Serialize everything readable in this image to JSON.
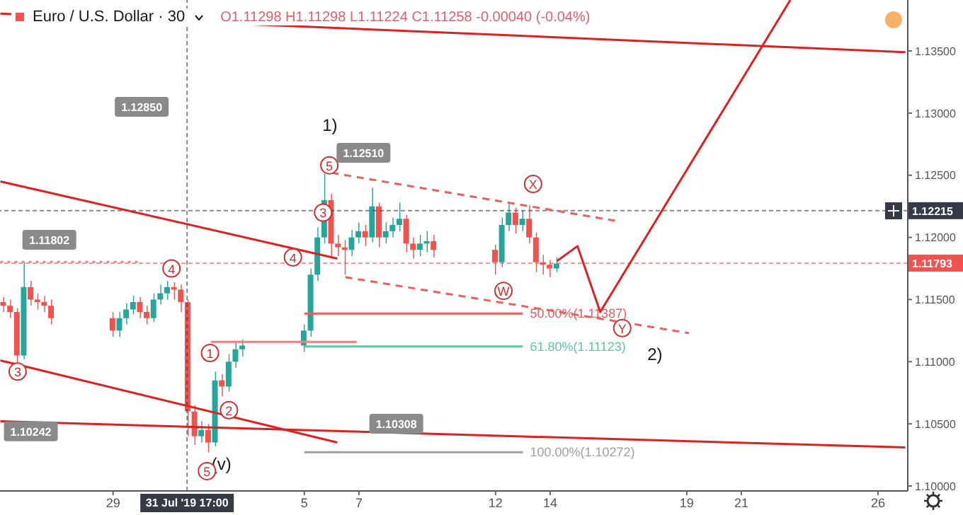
{
  "chart_data": {
    "type": "candlestick",
    "title": "Euro / U.S. Dollar · 30",
    "subtitle": "O1.11298 H1.11298 L1.11224 C1.11258 -0.00040 (-0.04%)",
    "x": [
      "2019-07-25T00:00",
      "2019-07-25T06:00",
      "2019-07-25T12:00",
      "2019-07-25T18:00",
      "2019-07-26T00:00",
      "2019-07-26T06:00",
      "2019-07-26T12:00",
      "2019-07-26T18:00",
      "2019-07-29T00:00",
      "2019-07-29T06:00",
      "2019-07-29T12:00",
      "2019-07-29T18:00",
      "2019-07-30T00:00",
      "2019-07-30T06:00",
      "2019-07-30T12:00",
      "2019-07-30T18:00",
      "2019-07-31T00:00",
      "2019-07-31T06:00",
      "2019-07-31T12:00",
      "2019-07-31T18:00",
      "2019-08-01T00:00",
      "2019-08-01T06:00",
      "2019-08-01T12:00",
      "2019-08-01T18:00",
      "2019-08-02T00:00",
      "2019-08-02T06:00",
      "2019-08-02T12:00",
      "2019-08-02T18:00",
      "2019-08-05T00:00",
      "2019-08-05T06:00",
      "2019-08-05T12:00",
      "2019-08-05T18:00",
      "2019-08-06T00:00",
      "2019-08-06T06:00",
      "2019-08-06T12:00",
      "2019-08-06T18:00",
      "2019-08-07T00:00",
      "2019-08-07T06:00",
      "2019-08-07T12:00",
      "2019-08-07T18:00",
      "2019-08-08T00:00",
      "2019-08-08T06:00",
      "2019-08-08T12:00",
      "2019-08-08T18:00",
      "2019-08-09T00:00",
      "2019-08-09T06:00",
      "2019-08-09T12:00",
      "2019-08-09T18:00",
      "2019-08-12T00:00",
      "2019-08-12T06:00",
      "2019-08-12T12:00",
      "2019-08-12T18:00",
      "2019-08-13T00:00",
      "2019-08-13T06:00",
      "2019-08-13T12:00",
      "2019-08-13T18:00",
      "2019-08-14T00:00",
      "2019-08-14T06:00"
    ],
    "ohlc": [
      [
        1.1148,
        1.1152,
        1.114,
        1.1145
      ],
      [
        1.1145,
        1.115,
        1.1135,
        1.114
      ],
      [
        1.114,
        1.1143,
        1.1098,
        1.1105
      ],
      [
        1.1105,
        1.118,
        1.1102,
        1.116
      ],
      [
        1.116,
        1.1165,
        1.1145,
        1.115
      ],
      [
        1.115,
        1.1155,
        1.1142,
        1.1148
      ],
      [
        1.1148,
        1.1153,
        1.114,
        1.1145
      ],
      [
        1.1145,
        1.115,
        1.113,
        1.1135
      ],
      [
        1.1135,
        1.114,
        1.112,
        1.1125
      ],
      [
        1.1125,
        1.114,
        1.112,
        1.1135
      ],
      [
        1.1135,
        1.1147,
        1.113,
        1.1142
      ],
      [
        1.1142,
        1.1153,
        1.1138,
        1.1148
      ],
      [
        1.1148,
        1.1152,
        1.1135,
        1.114
      ],
      [
        1.114,
        1.1145,
        1.113,
        1.1135
      ],
      [
        1.1135,
        1.1155,
        1.1132,
        1.115
      ],
      [
        1.115,
        1.1162,
        1.1146,
        1.1155
      ],
      [
        1.1155,
        1.1165,
        1.115,
        1.116
      ],
      [
        1.116,
        1.1164,
        1.115,
        1.1158
      ],
      [
        1.1158,
        1.1162,
        1.114,
        1.1148
      ],
      [
        1.1148,
        1.115,
        1.104,
        1.106
      ],
      [
        1.106,
        1.1065,
        1.1033,
        1.104
      ],
      [
        1.104,
        1.1052,
        1.1035,
        1.1045
      ],
      [
        1.1045,
        1.105,
        1.1027,
        1.1035
      ],
      [
        1.1035,
        1.1092,
        1.1032,
        1.1085
      ],
      [
        1.1085,
        1.109,
        1.1072,
        1.108
      ],
      [
        1.108,
        1.1106,
        1.1076,
        1.11
      ],
      [
        1.11,
        1.1116,
        1.1095,
        1.111
      ],
      [
        1.111,
        1.1118,
        1.1104,
        1.1113
      ],
      [
        1.1113,
        1.113,
        1.1108,
        1.1125
      ],
      [
        1.1125,
        1.1175,
        1.112,
        1.117
      ],
      [
        1.117,
        1.1208,
        1.1165,
        1.12
      ],
      [
        1.12,
        1.1251,
        1.1195,
        1.123
      ],
      [
        1.123,
        1.1235,
        1.1185,
        1.1195
      ],
      [
        1.1195,
        1.1202,
        1.1185,
        1.1192
      ],
      [
        1.1192,
        1.1198,
        1.117,
        1.119
      ],
      [
        1.119,
        1.1206,
        1.1185,
        1.12
      ],
      [
        1.12,
        1.1212,
        1.1195,
        1.1205
      ],
      [
        1.1205,
        1.121,
        1.1193,
        1.12
      ],
      [
        1.12,
        1.124,
        1.1196,
        1.1225
      ],
      [
        1.1225,
        1.1228,
        1.1192,
        1.12
      ],
      [
        1.12,
        1.1212,
        1.1195,
        1.1205
      ],
      [
        1.1205,
        1.1216,
        1.12,
        1.121
      ],
      [
        1.121,
        1.1228,
        1.1205,
        1.1215
      ],
      [
        1.1215,
        1.1218,
        1.1188,
        1.1195
      ],
      [
        1.1195,
        1.12,
        1.1183,
        1.119
      ],
      [
        1.119,
        1.1202,
        1.1185,
        1.1195
      ],
      [
        1.1195,
        1.1205,
        1.1188,
        1.1197
      ],
      [
        1.1197,
        1.1202,
        1.1184,
        1.119
      ],
      [
        1.119,
        1.1194,
        1.117,
        1.118
      ],
      [
        1.118,
        1.1216,
        1.1176,
        1.121
      ],
      [
        1.121,
        1.1228,
        1.1205,
        1.122
      ],
      [
        1.122,
        1.1224,
        1.1203,
        1.121
      ],
      [
        1.121,
        1.1222,
        1.1205,
        1.1215
      ],
      [
        1.1215,
        1.1226,
        1.1195,
        1.12
      ],
      [
        1.12,
        1.1204,
        1.1172,
        1.118
      ],
      [
        1.118,
        1.1186,
        1.117,
        1.1178
      ],
      [
        1.1178,
        1.1182,
        1.1168,
        1.1175
      ],
      [
        1.1175,
        1.1184,
        1.1172,
        1.1179
      ]
    ],
    "series": [
      {
        "type": "line",
        "color": "#e02020",
        "x": [
          "2019-07-24T21:00",
          "2019-08-27T00:00"
        ],
        "values": [
          1.138,
          1.1349
        ]
      },
      {
        "type": "line",
        "color": "#e02020",
        "x": [
          "2019-07-24T21:00",
          "2019-08-06T05:00"
        ],
        "values": [
          1.1245,
          1.1183
        ]
      },
      {
        "type": "line",
        "color": "#e02020",
        "x": [
          "2019-07-24T21:00",
          "2019-08-06T05:00"
        ],
        "values": [
          1.1101,
          1.1035
        ]
      },
      {
        "type": "line",
        "color": "#e02020",
        "x": [
          "2019-07-24T21:00",
          "2019-08-27T00:00"
        ],
        "values": [
          1.1052,
          1.1031
        ]
      },
      {
        "type": "line",
        "color": "#e86060",
        "line_style": "dashed",
        "x": [
          "2019-08-06T00:00",
          "2019-08-16T12:00"
        ],
        "values": [
          1.1252,
          1.1213
        ]
      },
      {
        "type": "line",
        "color": "#e86060",
        "line_style": "dashed",
        "x": [
          "2019-08-06T12:00",
          "2019-08-19T02:00"
        ],
        "values": [
          1.1168,
          1.1123
        ]
      },
      {
        "type": "line",
        "color": "#e02020",
        "x": [
          "2019-08-14T06:00",
          "2019-08-15T00:00",
          "2019-08-15T20:00",
          "2019-08-22T19:00"
        ],
        "values": [
          1.1181,
          1.1193,
          1.114,
          1.1391
        ]
      },
      {
        "type": "line",
        "color": "#f08080",
        "line_style": "dotted",
        "x": [
          "2019-07-24T21:00",
          "2019-07-30T00:00"
        ],
        "values": [
          1.11802,
          1.11802
        ]
      },
      {
        "type": "line",
        "color": "#f08080",
        "x": [
          "2019-08-01T14:00",
          "2019-08-06T22:00"
        ],
        "values": [
          1.1116,
          1.1116
        ]
      },
      {
        "type": "line",
        "color": "#f05a5a",
        "name": "50.00%(1.11387)",
        "x": [
          "2019-08-05T00:00",
          "2019-08-13T00:00"
        ],
        "values": [
          1.11387,
          1.11387
        ]
      },
      {
        "type": "line",
        "color": "#5cc8a8",
        "name": "61.80%(1.11123)",
        "x": [
          "2019-08-05T00:00",
          "2019-08-13T00:00"
        ],
        "values": [
          1.11123,
          1.11123
        ]
      },
      {
        "type": "line",
        "color": "#a0a0a0",
        "name": "100.00%(1.10272)",
        "x": [
          "2019-08-05T00:00",
          "2019-08-13T00:00"
        ],
        "values": [
          1.10272,
          1.10272
        ]
      }
    ],
    "annotations": [
      "1)",
      "2)",
      "5",
      "3",
      "2",
      "5",
      "W",
      "X",
      "Y",
      "1.12850",
      "1.11802",
      "1.12510",
      "1.10242",
      "1.10308",
      {
        "text": "(v)",
        "x": "2019-08-01T12:00",
        "y": 1.1027
      },
      {
        "text": "3",
        "x": "2019-08-05T16:30",
        "y": 1.122
      },
      {
        "text": "4",
        "x": "2019-08-04T14:00",
        "y": 1.1184
      },
      {
        "text": "4",
        "x": "2019-07-31T03:20",
        "y": 1.1175
      },
      {
        "text": "1",
        "x": "2019-08-01T13:10",
        "y": 1.1107
      }
    ],
    "ref_lines": [
      {
        "axis": "y",
        "value": 1.12215,
        "label": "1.12215",
        "color": "#363a45"
      },
      {
        "axis": "y",
        "value": 1.11793,
        "label": "1.11793",
        "color": "#ef5350"
      },
      {
        "axis": "x",
        "value": "2019-07-31T17:00",
        "label": "31 Jul '19  17:00",
        "color": "#363a45"
      }
    ],
    "xlim": [
      "2019-07-24T20:40",
      "2019-08-27T02:10"
    ],
    "xticks": [
      {
        "value": "2019-07-29",
        "label": "29"
      },
      {
        "value": "2019-08-05",
        "label": "5"
      },
      {
        "value": "2019-08-07",
        "label": "7"
      },
      {
        "value": "2019-08-12",
        "label": "12"
      },
      {
        "value": "2019-08-14",
        "label": "14"
      },
      {
        "value": "2019-08-19",
        "label": "19"
      },
      {
        "value": "2019-08-21",
        "label": "21"
      },
      {
        "value": "2019-08-26",
        "label": "26"
      }
    ],
    "ylim": [
      1.0996,
      1.1391
    ],
    "yticks": [
      {
        "value": 1.1,
        "label": "1.10000"
      },
      {
        "value": 1.105,
        "label": "1.10500"
      },
      {
        "value": 1.11,
        "label": "1.11000"
      },
      {
        "value": 1.115,
        "label": "1.11500"
      },
      {
        "value": 1.12,
        "label": "1.12000"
      },
      {
        "value": 1.125,
        "label": "1.12500"
      },
      {
        "value": 1.13,
        "label": "1.13000"
      },
      {
        "value": 1.135,
        "label": "1.13500"
      }
    ]
  }
}
